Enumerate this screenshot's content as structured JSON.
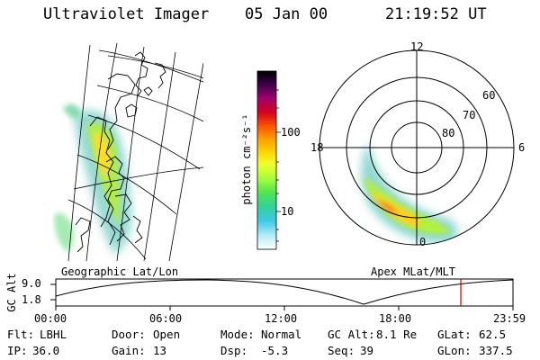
{
  "header": {
    "title": "Ultraviolet Imager",
    "date": "05 Jan 00",
    "time": "21:19:52 UT"
  },
  "colorbar": {
    "unit_label": "photon cm⁻²s⁻¹",
    "tick_high": "100",
    "tick_low": "10",
    "colors": [
      "#000000",
      "#3a0046",
      "#a0006e",
      "#d2001e",
      "#ff5500",
      "#ff9f00",
      "#ffd200",
      "#f0ff28",
      "#a8ff3c",
      "#50e650",
      "#32d29b",
      "#3cc8e6",
      "#b4ebf5",
      "#ffffff"
    ]
  },
  "panels": {
    "left_caption": "Geographic Lat/Lon",
    "right_caption": "Apex MLat/MLT",
    "polar_mlt_labels": {
      "top": "12",
      "right": "6",
      "bottom": "0",
      "left": "18"
    },
    "polar_lat_labels": [
      "60",
      "70",
      "80"
    ]
  },
  "altitude_plot": {
    "axis_label": "GC Alt",
    "ytick_high": "9.0",
    "ytick_low": "1.8",
    "xticks": [
      "00:00",
      "06:00",
      "12:00",
      "18:00",
      "23:59"
    ],
    "marker_color": "#cc0000"
  },
  "info": {
    "flt_label": "Flt:",
    "flt_value": "LBHL",
    "ip_label": "IP:",
    "ip_value": "36.0",
    "door_label": "Door:",
    "door_value": "Open",
    "gain_label": "Gain:",
    "gain_value": "13",
    "mode_label": "Mode:",
    "mode_value": "Normal",
    "dsp_label": "Dsp:",
    "dsp_value": "-5.3",
    "gcalt_label": "GC Alt:",
    "gcalt_value": "8.1 Re",
    "seq_label": "Seq:",
    "seq_value": "39",
    "glat_label": "GLat:",
    "glat_value": "62.5",
    "glon_label": "GLon:",
    "glon_value": "337.5"
  }
}
